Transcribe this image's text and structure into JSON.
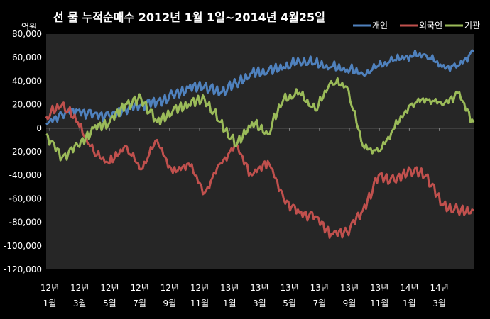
{
  "chart_data": {
    "type": "line",
    "title": "선 물 누적순매수 2012년 1월 1일~2014년 4월25일",
    "unit_label": "억원",
    "ylim": [
      -120000,
      80000
    ],
    "y_ticks": [
      80000,
      60000,
      40000,
      20000,
      0,
      -20000,
      -40000,
      -60000,
      -80000,
      -100000,
      -120000
    ],
    "y_tick_labels": [
      "80,000",
      "60,000",
      "40,000",
      "20,000",
      "0",
      "-20,000",
      "-40,000",
      "-60,000",
      "-80,000",
      "-100,000",
      "-120,000"
    ],
    "x_tick_labels": [
      {
        "year": "12년",
        "month": "1월"
      },
      {
        "year": "12년",
        "month": "3월"
      },
      {
        "year": "12년",
        "month": "5월"
      },
      {
        "year": "12년",
        "month": "7월"
      },
      {
        "year": "12년",
        "month": "9월"
      },
      {
        "year": "12년",
        "month": "11월"
      },
      {
        "year": "13년",
        "month": "1월"
      },
      {
        "year": "13년",
        "month": "3월"
      },
      {
        "year": "13년",
        "month": "5월"
      },
      {
        "year": "13년",
        "month": "7월"
      },
      {
        "year": "13년",
        "month": "9월"
      },
      {
        "year": "13년",
        "month": "11월"
      },
      {
        "year": "14년",
        "month": "1월"
      },
      {
        "year": "14년",
        "month": "3월"
      }
    ],
    "x": [
      "2012-01",
      "2012-02",
      "2012-03",
      "2012-04",
      "2012-05",
      "2012-06",
      "2012-07",
      "2012-08",
      "2012-09",
      "2012-10",
      "2012-11",
      "2012-12",
      "2013-01",
      "2013-02",
      "2013-03",
      "2013-04",
      "2013-05",
      "2013-06",
      "2013-07",
      "2013-08",
      "2013-09",
      "2013-10",
      "2013-11",
      "2013-12",
      "2014-01",
      "2014-02",
      "2014-03",
      "2014-04"
    ],
    "legend_position": "top-right",
    "background": "#262626",
    "series": [
      {
        "name": "개인",
        "color": "#4F81BD",
        "values": [
          3000,
          12000,
          15000,
          12000,
          10000,
          17000,
          20000,
          22000,
          28000,
          34000,
          36000,
          30000,
          38000,
          47000,
          48000,
          52000,
          57000,
          55000,
          52000,
          50000,
          46000,
          53000,
          58000,
          62000,
          62000,
          52000,
          53000,
          65000
        ]
      },
      {
        "name": "외국인",
        "color": "#C0504D",
        "values": [
          10000,
          20000,
          5000,
          -20000,
          -30000,
          -15000,
          -35000,
          -10000,
          -38000,
          -30000,
          -55000,
          -30000,
          -15000,
          -40000,
          -28000,
          -60000,
          -72000,
          -75000,
          -90000,
          -88000,
          -70000,
          -40000,
          -45000,
          -35000,
          -40000,
          -65000,
          -70000,
          -70000
        ]
      },
      {
        "name": "기관",
        "color": "#9BBB59",
        "values": [
          -5000,
          -25000,
          -15000,
          0,
          5000,
          20000,
          25000,
          5000,
          15000,
          20000,
          25000,
          5000,
          -15000,
          5000,
          -5000,
          25000,
          30000,
          15000,
          40000,
          35000,
          -15000,
          -20000,
          0,
          20000,
          25000,
          20000,
          30000,
          5000
        ]
      }
    ]
  }
}
